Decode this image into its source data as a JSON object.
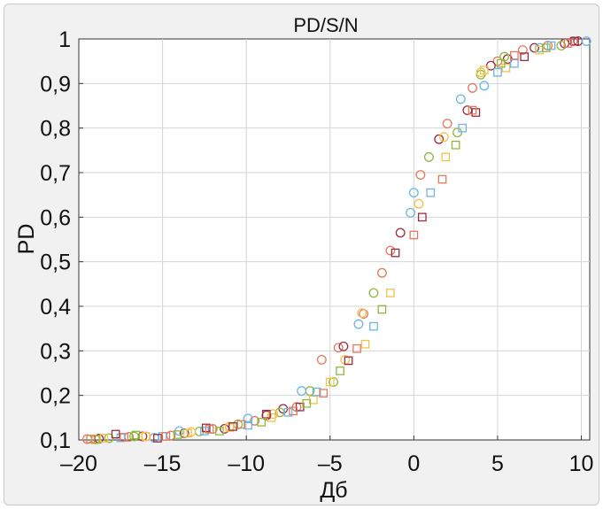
{
  "chart_data": {
    "type": "scatter",
    "title": "PD/S/N",
    "xlabel": "Дб",
    "ylabel": "PD",
    "xlim": [
      -20,
      10.5
    ],
    "ylim": [
      0.1,
      1.0
    ],
    "grid": true,
    "xticks": [
      -20,
      -15,
      -10,
      -5,
      0,
      5,
      10
    ],
    "xtick_labels": [
      "–20",
      "–15",
      "–10",
      "–5",
      "0",
      "5",
      "10"
    ],
    "yticks": [
      0.1,
      0.2,
      0.3,
      0.4,
      0.5,
      0.6,
      0.7,
      0.8,
      0.9,
      1.0
    ],
    "ytick_labels": [
      "0,1",
      "0,2",
      "0,3",
      "0,4",
      "0,5",
      "0,6",
      "0,7",
      "0,8",
      "0,9",
      "1"
    ],
    "series": [
      {
        "marker": "circle",
        "color": "#e07a5f",
        "points": [
          [
            -19.5,
            0.102
          ],
          [
            -17,
            0.107
          ],
          [
            -14.5,
            0.11
          ],
          [
            -12,
            0.125
          ],
          [
            -9.5,
            0.143
          ],
          [
            -7,
            0.174
          ],
          [
            -5.5,
            0.28
          ],
          [
            -4.5,
            0.307
          ],
          [
            -3,
            0.383
          ],
          [
            -1.9,
            0.475
          ],
          [
            -1.4,
            0.525
          ],
          [
            0.4,
            0.695
          ],
          [
            2,
            0.81
          ],
          [
            3.5,
            0.89
          ],
          [
            5,
            0.95
          ],
          [
            6.5,
            0.975
          ],
          [
            8,
            0.985
          ],
          [
            9.5,
            0.995
          ]
        ]
      },
      {
        "marker": "circle",
        "color": "#9b2c3f",
        "points": [
          [
            -18.8,
            0.103
          ],
          [
            -16.2,
            0.108
          ],
          [
            -13.7,
            0.115
          ],
          [
            -11.3,
            0.125
          ],
          [
            -8.8,
            0.155
          ],
          [
            -7.8,
            0.17
          ],
          [
            -4.2,
            0.31
          ],
          [
            -0.8,
            0.565
          ],
          [
            1.5,
            0.775
          ],
          [
            3.2,
            0.84
          ],
          [
            4.6,
            0.94
          ],
          [
            5.6,
            0.955
          ],
          [
            7.2,
            0.98
          ],
          [
            9,
            0.99
          ],
          [
            9.8,
            0.995
          ]
        ]
      },
      {
        "marker": "circle",
        "color": "#8fb83c",
        "points": [
          [
            -18.2,
            0.104
          ],
          [
            -16.7,
            0.108
          ],
          [
            -12.8,
            0.119
          ],
          [
            -10.5,
            0.135
          ],
          [
            -8,
            0.162
          ],
          [
            -6.2,
            0.21
          ],
          [
            -4.8,
            0.23
          ],
          [
            -2.4,
            0.43
          ],
          [
            0.9,
            0.735
          ],
          [
            2.6,
            0.79
          ],
          [
            4,
            0.92
          ],
          [
            5.4,
            0.96
          ],
          [
            8.8,
            0.985
          ]
        ]
      },
      {
        "marker": "circle",
        "color": "#6cb6e6",
        "points": [
          [
            -15.5,
            0.105
          ],
          [
            -14,
            0.12
          ],
          [
            -9.9,
            0.148
          ],
          [
            -6.7,
            0.21
          ],
          [
            -3.3,
            0.36
          ],
          [
            -0.2,
            0.61
          ],
          [
            0,
            0.655
          ],
          [
            2.8,
            0.865
          ],
          [
            4.2,
            0.895
          ],
          [
            7.5,
            0.98
          ],
          [
            10.3,
            0.995
          ]
        ]
      },
      {
        "marker": "circle",
        "color": "#f2c14e",
        "points": [
          [
            -19,
            0.101
          ],
          [
            -16,
            0.108
          ],
          [
            -13.3,
            0.118
          ],
          [
            -11,
            0.13
          ],
          [
            -8.4,
            0.158
          ],
          [
            -4.1,
            0.28
          ],
          [
            -3.1,
            0.385
          ],
          [
            0.3,
            0.63
          ],
          [
            1.8,
            0.78
          ],
          [
            4,
            0.925
          ]
        ]
      },
      {
        "marker": "square",
        "color": "#f2c14e",
        "points": [
          [
            -18.5,
            0.104
          ],
          [
            -16,
            0.108
          ],
          [
            -13.5,
            0.115
          ],
          [
            -11,
            0.128
          ],
          [
            -8.5,
            0.15
          ],
          [
            -6,
            0.19
          ],
          [
            -5,
            0.23
          ],
          [
            -2.9,
            0.315
          ],
          [
            -1.4,
            0.43
          ],
          [
            1.9,
            0.735
          ],
          [
            4.2,
            0.93
          ],
          [
            5.5,
            0.935
          ],
          [
            7.5,
            0.975
          ]
        ]
      },
      {
        "marker": "square",
        "color": "#6cb6e6",
        "points": [
          [
            -17.5,
            0.105
          ],
          [
            -15,
            0.108
          ],
          [
            -12.5,
            0.12
          ],
          [
            -9.9,
            0.133
          ],
          [
            -7.5,
            0.162
          ],
          [
            -5.8,
            0.208
          ],
          [
            -2.4,
            0.355
          ],
          [
            1,
            0.655
          ],
          [
            2.9,
            0.8
          ],
          [
            5,
            0.925
          ],
          [
            6,
            0.945
          ],
          [
            8.2,
            0.985
          ]
        ]
      },
      {
        "marker": "square",
        "color": "#9b2c3f",
        "points": [
          [
            -17.8,
            0.113
          ],
          [
            -15.3,
            0.104
          ],
          [
            -12.4,
            0.127
          ],
          [
            -10.8,
            0.13
          ],
          [
            -8.8,
            0.158
          ],
          [
            -6.8,
            0.174
          ],
          [
            -3.9,
            0.278
          ],
          [
            -1.1,
            0.52
          ],
          [
            0.5,
            0.6
          ],
          [
            3.7,
            0.835
          ],
          [
            6.6,
            0.96
          ],
          [
            9.6,
            0.995
          ]
        ]
      },
      {
        "marker": "square",
        "color": "#8fb83c",
        "points": [
          [
            -19,
            0.101
          ],
          [
            -16.6,
            0.111
          ],
          [
            -14.1,
            0.112
          ],
          [
            -11.6,
            0.12
          ],
          [
            -9.1,
            0.14
          ],
          [
            -6.4,
            0.182
          ],
          [
            -4.4,
            0.255
          ],
          [
            -1.9,
            0.393
          ],
          [
            2.5,
            0.762
          ],
          [
            5.2,
            0.945
          ],
          [
            7.9,
            0.98
          ]
        ]
      },
      {
        "marker": "square",
        "color": "#e07a5f",
        "points": [
          [
            -19.3,
            0.102
          ],
          [
            -17.3,
            0.106
          ],
          [
            -14.8,
            0.108
          ],
          [
            -12.2,
            0.124
          ],
          [
            -10.3,
            0.135
          ],
          [
            -7.2,
            0.165
          ],
          [
            -5.4,
            0.205
          ],
          [
            -3.4,
            0.305
          ],
          [
            0,
            0.56
          ],
          [
            1.7,
            0.685
          ],
          [
            3.5,
            0.84
          ],
          [
            6,
            0.963
          ],
          [
            9.2,
            0.99
          ]
        ]
      }
    ]
  }
}
